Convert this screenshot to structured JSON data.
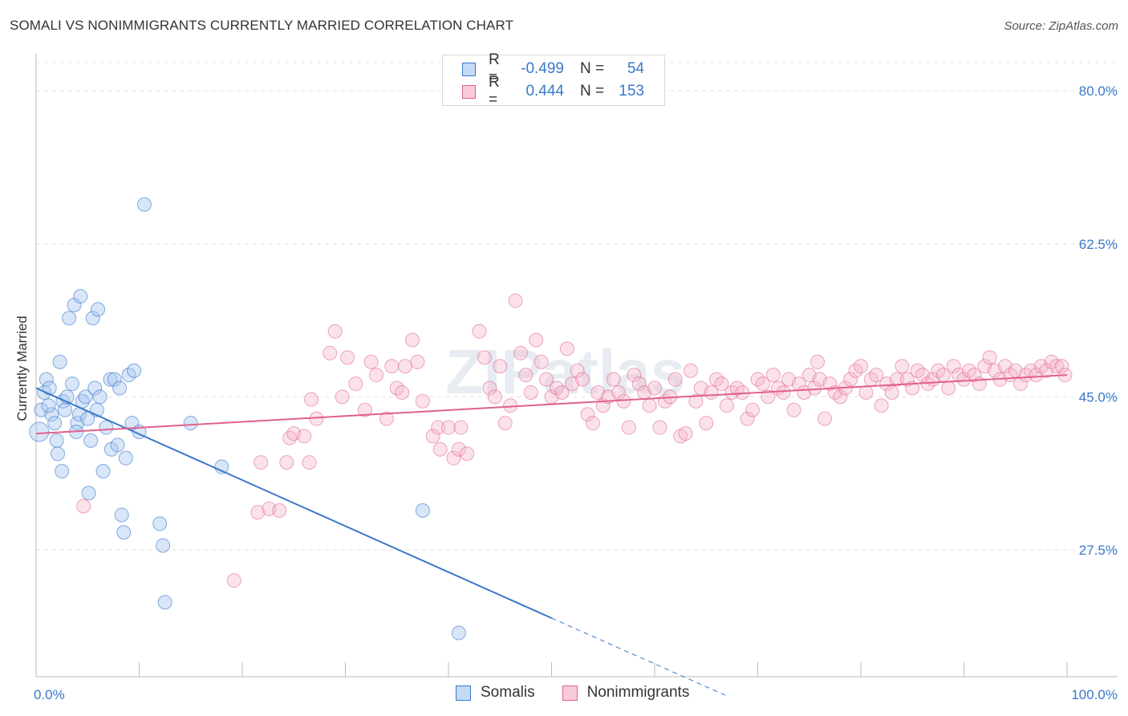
{
  "title": "SOMALI VS NONIMMIGRANTS CURRENTLY MARRIED CORRELATION CHART",
  "source": "Source: ZipAtlas.com",
  "watermark": "ZIPatlas",
  "colors": {
    "blue": "#3a78c9",
    "blue_fill": "#a9c8f0",
    "pink": "#e0608e",
    "pink_fill": "#f5b6ca"
  },
  "legend": {
    "rows": [
      {
        "r_label": "R =",
        "r_value": "-0.499",
        "n_label": "N =",
        "n_value": "54"
      },
      {
        "r_label": "R =",
        "r_value": "0.444",
        "n_label": "N =",
        "n_value": "153"
      }
    ]
  },
  "bottom_legend": {
    "series1": "Somalis",
    "series2": "Nonimmigrants"
  },
  "chart_data": {
    "type": "scatter",
    "title": "SOMALI VS NONIMMIGRANTS CURRENTLY MARRIED CORRELATION CHART",
    "xlabel": "",
    "ylabel": "Currently Married",
    "xlim": [
      0,
      100
    ],
    "ylim": [
      13.0,
      83.5
    ],
    "x_tick_labels": [
      "0.0%",
      "100.0%"
    ],
    "y_ticks": [
      27.5,
      45.0,
      62.5,
      80.0
    ],
    "y_tick_labels": [
      "27.5%",
      "45.0%",
      "62.5%",
      "80.0%"
    ],
    "series": [
      {
        "name": "Somalis",
        "color": "#3a78c9",
        "trend": {
          "x": [
            0,
            50
          ],
          "y": [
            46.0,
            19.7
          ],
          "dashed_to": [
            67,
            10.8
          ]
        },
        "points": [
          [
            0.3,
            41.0
          ],
          [
            0.5,
            43.5
          ],
          [
            0.8,
            45.5
          ],
          [
            1.0,
            47.0
          ],
          [
            1.3,
            46.0
          ],
          [
            1.5,
            43.0
          ],
          [
            1.8,
            42.0
          ],
          [
            2.0,
            40.0
          ],
          [
            2.1,
            38.5
          ],
          [
            2.3,
            49.0
          ],
          [
            2.5,
            36.5
          ],
          [
            2.6,
            44.5
          ],
          [
            2.8,
            43.5
          ],
          [
            3.0,
            45.0
          ],
          [
            3.2,
            54.0
          ],
          [
            3.5,
            46.5
          ],
          [
            3.7,
            55.5
          ],
          [
            4.0,
            42.0
          ],
          [
            4.2,
            43.0
          ],
          [
            4.3,
            56.5
          ],
          [
            4.5,
            44.5
          ],
          [
            4.8,
            45.0
          ],
          [
            5.0,
            42.5
          ],
          [
            5.1,
            34.0
          ],
          [
            5.3,
            40.0
          ],
          [
            5.5,
            54.0
          ],
          [
            5.7,
            46.0
          ],
          [
            5.9,
            43.5
          ],
          [
            6.0,
            55.0
          ],
          [
            6.2,
            45.0
          ],
          [
            6.5,
            36.5
          ],
          [
            7.2,
            47.0
          ],
          [
            7.3,
            39.0
          ],
          [
            7.6,
            47.0
          ],
          [
            7.9,
            39.5
          ],
          [
            8.1,
            46.0
          ],
          [
            8.3,
            31.5
          ],
          [
            8.5,
            29.5
          ],
          [
            8.7,
            38.0
          ],
          [
            9.0,
            47.5
          ],
          [
            9.3,
            42.0
          ],
          [
            9.5,
            48.0
          ],
          [
            10.0,
            41.0
          ],
          [
            10.5,
            67.0
          ],
          [
            12.0,
            30.5
          ],
          [
            12.3,
            28.0
          ],
          [
            12.5,
            21.5
          ],
          [
            15.0,
            42.0
          ],
          [
            18.0,
            37.0
          ],
          [
            37.5,
            32.0
          ],
          [
            41.0,
            18.0
          ],
          [
            1.2,
            44.0
          ],
          [
            3.9,
            41.0
          ],
          [
            6.8,
            41.5
          ]
        ]
      },
      {
        "name": "Nonimmigrants",
        "color": "#e0608e",
        "trend": {
          "x": [
            0,
            100
          ],
          "y": [
            40.8,
            47.5
          ]
        },
        "points": [
          [
            4.6,
            32.5
          ],
          [
            19.2,
            24.0
          ],
          [
            21.5,
            31.8
          ],
          [
            21.8,
            37.5
          ],
          [
            22.6,
            32.2
          ],
          [
            23.6,
            32.0
          ],
          [
            24.3,
            37.5
          ],
          [
            24.6,
            40.3
          ],
          [
            25.0,
            40.8
          ],
          [
            26.0,
            40.5
          ],
          [
            26.5,
            37.5
          ],
          [
            26.7,
            44.7
          ],
          [
            27.2,
            42.5
          ],
          [
            28.5,
            50.0
          ],
          [
            29.0,
            52.5
          ],
          [
            29.7,
            45.0
          ],
          [
            30.2,
            49.5
          ],
          [
            31.0,
            46.5
          ],
          [
            31.9,
            43.5
          ],
          [
            32.5,
            49.0
          ],
          [
            33.0,
            47.5
          ],
          [
            34.0,
            42.5
          ],
          [
            34.5,
            48.5
          ],
          [
            35.0,
            46.0
          ],
          [
            35.5,
            45.5
          ],
          [
            35.8,
            48.5
          ],
          [
            36.5,
            51.5
          ],
          [
            37.0,
            49.0
          ],
          [
            37.5,
            44.5
          ],
          [
            38.5,
            40.5
          ],
          [
            39.0,
            41.5
          ],
          [
            39.2,
            39.0
          ],
          [
            40.0,
            41.5
          ],
          [
            40.5,
            38.0
          ],
          [
            41.0,
            39.0
          ],
          [
            41.2,
            41.5
          ],
          [
            41.8,
            38.5
          ],
          [
            43.0,
            52.5
          ],
          [
            43.5,
            49.5
          ],
          [
            44.0,
            46.0
          ],
          [
            44.5,
            45.0
          ],
          [
            45.0,
            48.5
          ],
          [
            45.5,
            42.0
          ],
          [
            46.0,
            44.0
          ],
          [
            46.5,
            56.0
          ],
          [
            47.0,
            50.0
          ],
          [
            47.5,
            47.5
          ],
          [
            48.0,
            45.5
          ],
          [
            48.5,
            51.5
          ],
          [
            49.0,
            49.0
          ],
          [
            49.5,
            47.0
          ],
          [
            50.0,
            45.0
          ],
          [
            50.5,
            46.0
          ],
          [
            51.0,
            45.5
          ],
          [
            51.5,
            50.5
          ],
          [
            52.0,
            46.5
          ],
          [
            52.5,
            48.0
          ],
          [
            53.0,
            47.0
          ],
          [
            53.5,
            43.0
          ],
          [
            54.0,
            42.0
          ],
          [
            54.5,
            45.5
          ],
          [
            55.0,
            44.0
          ],
          [
            55.5,
            45.0
          ],
          [
            56.0,
            47.0
          ],
          [
            56.5,
            45.5
          ],
          [
            57.0,
            44.5
          ],
          [
            57.5,
            41.5
          ],
          [
            58.0,
            47.5
          ],
          [
            58.5,
            46.5
          ],
          [
            59.0,
            45.5
          ],
          [
            59.5,
            44.0
          ],
          [
            60.0,
            46.0
          ],
          [
            60.5,
            41.5
          ],
          [
            61.0,
            44.5
          ],
          [
            61.5,
            45.0
          ],
          [
            62.0,
            47.0
          ],
          [
            62.5,
            40.5
          ],
          [
            63.0,
            40.8
          ],
          [
            63.5,
            48.0
          ],
          [
            64.0,
            44.5
          ],
          [
            64.5,
            46.0
          ],
          [
            65.0,
            42.0
          ],
          [
            65.5,
            45.5
          ],
          [
            66.0,
            47.0
          ],
          [
            66.5,
            46.5
          ],
          [
            67.0,
            44.0
          ],
          [
            67.5,
            45.5
          ],
          [
            68.0,
            46.0
          ],
          [
            68.5,
            45.5
          ],
          [
            69.0,
            42.5
          ],
          [
            69.5,
            43.5
          ],
          [
            70.0,
            47.0
          ],
          [
            70.5,
            46.5
          ],
          [
            71.0,
            45.0
          ],
          [
            71.5,
            47.5
          ],
          [
            72.0,
            46.0
          ],
          [
            72.5,
            45.5
          ],
          [
            73.0,
            47.0
          ],
          [
            73.5,
            43.5
          ],
          [
            74.0,
            46.5
          ],
          [
            74.5,
            45.5
          ],
          [
            75.0,
            47.5
          ],
          [
            75.5,
            46.0
          ],
          [
            76.0,
            47.0
          ],
          [
            76.5,
            42.5
          ],
          [
            77.0,
            46.5
          ],
          [
            77.5,
            45.5
          ],
          [
            78.0,
            45.0
          ],
          [
            78.5,
            46.0
          ],
          [
            79.0,
            47.0
          ],
          [
            79.5,
            48.0
          ],
          [
            80.0,
            48.5
          ],
          [
            80.5,
            45.5
          ],
          [
            81.0,
            47.0
          ],
          [
            81.5,
            47.5
          ],
          [
            82.0,
            44.0
          ],
          [
            82.5,
            46.5
          ],
          [
            83.0,
            45.5
          ],
          [
            83.5,
            47.0
          ],
          [
            84.0,
            48.5
          ],
          [
            84.5,
            47.0
          ],
          [
            85.0,
            46.0
          ],
          [
            85.5,
            48.0
          ],
          [
            86.0,
            47.5
          ],
          [
            86.5,
            46.5
          ],
          [
            87.0,
            47.0
          ],
          [
            87.5,
            48.0
          ],
          [
            88.0,
            47.5
          ],
          [
            88.5,
            46.0
          ],
          [
            89.0,
            48.5
          ],
          [
            89.5,
            47.5
          ],
          [
            90.0,
            47.0
          ],
          [
            90.5,
            48.0
          ],
          [
            91.0,
            47.5
          ],
          [
            91.5,
            46.5
          ],
          [
            92.0,
            48.5
          ],
          [
            92.5,
            49.5
          ],
          [
            93.0,
            48.0
          ],
          [
            93.5,
            47.0
          ],
          [
            94.0,
            48.5
          ],
          [
            94.5,
            47.5
          ],
          [
            95.0,
            48.0
          ],
          [
            95.5,
            46.5
          ],
          [
            96.0,
            47.5
          ],
          [
            96.5,
            48.0
          ],
          [
            97.0,
            47.5
          ],
          [
            97.5,
            48.5
          ],
          [
            98.0,
            48.0
          ],
          [
            98.5,
            49.0
          ],
          [
            99.0,
            48.5
          ],
          [
            99.5,
            48.5
          ],
          [
            99.8,
            47.5
          ],
          [
            75.8,
            49.0
          ]
        ]
      }
    ]
  }
}
